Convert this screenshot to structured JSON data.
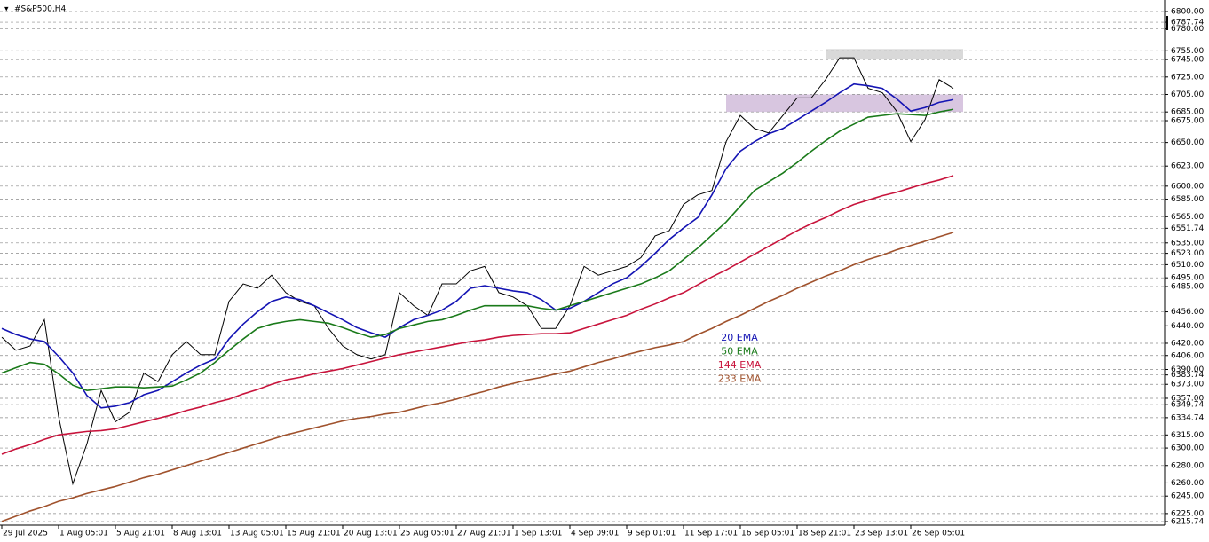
{
  "chart_data": {
    "type": "line",
    "title": "#S&P500,H4",
    "categories": [
      "29 Jul 2025",
      null,
      null,
      null,
      "1 Aug 05:01",
      null,
      null,
      null,
      "5 Aug 21:01",
      null,
      null,
      null,
      "8 Aug 13:01",
      null,
      null,
      null,
      "13 Aug 05:01",
      null,
      null,
      null,
      "15 Aug 21:01",
      null,
      null,
      null,
      "20 Aug 13:01",
      null,
      null,
      null,
      "25 Aug 05:01",
      null,
      null,
      null,
      "27 Aug 21:01",
      null,
      null,
      null,
      "1 Sep 13:01",
      null,
      null,
      null,
      "4 Sep 09:01",
      null,
      null,
      null,
      "9 Sep 01:01",
      null,
      null,
      null,
      "11 Sep 17:01",
      null,
      null,
      null,
      "16 Sep 05:01",
      null,
      null,
      null,
      "18 Sep 21:01",
      null,
      null,
      null,
      "23 Sep 13:01",
      null,
      null,
      null,
      "26 Sep 05:01",
      null,
      null,
      null
    ],
    "series": [
      {
        "color": "#000000",
        "values": [
          6427,
          6412,
          6417,
          6447,
          6336,
          6259,
          6305,
          6366,
          6330,
          6341,
          6386,
          6376,
          6407,
          6422,
          6407,
          6407,
          6468,
          6488,
          6483,
          6498,
          6478,
          6468,
          6463,
          6437,
          6417,
          6407,
          6402,
          6407,
          6478,
          6463,
          6452,
          6488,
          6488,
          6503,
          6508,
          6478,
          6473,
          6463,
          6437,
          6437,
          6463,
          6508,
          6498,
          6503,
          6508,
          6518,
          6543,
          6549,
          6579,
          6590,
          6595,
          6651,
          6681,
          6666,
          6661,
          6681,
          6701,
          6701,
          6722,
          6747,
          6747,
          6712,
          6707,
          6686,
          6651,
          6676,
          6722,
          6712
        ]
      },
      {
        "name": "20 EMA",
        "color": "#1414b4",
        "values": [
          6437,
          6430,
          6425,
          6422,
          6405,
          6386,
          6360,
          6346,
          6348,
          6352,
          6361,
          6366,
          6376,
          6386,
          6395,
          6402,
          6425,
          6442,
          6456,
          6468,
          6473,
          6470,
          6463,
          6455,
          6447,
          6438,
          6432,
          6427,
          6438,
          6447,
          6452,
          6458,
          6468,
          6483,
          6486,
          6483,
          6480,
          6478,
          6470,
          6458,
          6460,
          6468,
          6478,
          6488,
          6495,
          6508,
          6523,
          6539,
          6552,
          6564,
          6590,
          6620,
          6640,
          6651,
          6660,
          6666,
          6676,
          6686,
          6696,
          6707,
          6717,
          6715,
          6712,
          6700,
          6686,
          6690,
          6696,
          6699
        ]
      },
      {
        "name": "50 EMA",
        "color": "#1a7a1a",
        "values": [
          6386,
          6392,
          6398,
          6396,
          6385,
          6372,
          6366,
          6368,
          6370,
          6370,
          6369,
          6370,
          6371,
          6378,
          6386,
          6398,
          6412,
          6425,
          6437,
          6442,
          6445,
          6447,
          6445,
          6443,
          6438,
          6432,
          6427,
          6430,
          6437,
          6441,
          6445,
          6447,
          6452,
          6458,
          6463,
          6463,
          6463,
          6463,
          6460,
          6458,
          6463,
          6468,
          6473,
          6478,
          6483,
          6488,
          6495,
          6503,
          6516,
          6529,
          6544,
          6559,
          6577,
          6595,
          6605,
          6615,
          6627,
          6640,
          6652,
          6663,
          6671,
          6679,
          6681,
          6683,
          6682,
          6681,
          6685,
          6688
        ]
      },
      {
        "name": "144 EMA",
        "color": "#c8143c",
        "values": [
          6293,
          6299,
          6304,
          6310,
          6315,
          6317,
          6319,
          6320,
          6322,
          6326,
          6330,
          6334,
          6338,
          6343,
          6347,
          6352,
          6356,
          6362,
          6367,
          6373,
          6378,
          6381,
          6385,
          6388,
          6391,
          6395,
          6399,
          6403,
          6407,
          6410,
          6413,
          6416,
          6419,
          6422,
          6424,
          6427,
          6429,
          6430,
          6431,
          6431,
          6432,
          6437,
          6442,
          6447,
          6452,
          6459,
          6465,
          6472,
          6478,
          6487,
          6496,
          6504,
          6513,
          6522,
          6531,
          6540,
          6549,
          6557,
          6564,
          6572,
          6579,
          6584,
          6589,
          6593,
          6598,
          6603,
          6607,
          6612
        ]
      },
      {
        "name": "233 EMA",
        "color": "#a0522d",
        "values": [
          6216,
          6222,
          6228,
          6233,
          6239,
          6243,
          6248,
          6252,
          6256,
          6261,
          6266,
          6270,
          6275,
          6280,
          6285,
          6290,
          6295,
          6300,
          6305,
          6310,
          6315,
          6319,
          6323,
          6327,
          6331,
          6334,
          6336,
          6339,
          6341,
          6345,
          6349,
          6352,
          6356,
          6361,
          6365,
          6370,
          6374,
          6378,
          6381,
          6385,
          6388,
          6393,
          6398,
          6402,
          6407,
          6411,
          6415,
          6418,
          6422,
          6430,
          6437,
          6445,
          6452,
          6460,
          6468,
          6475,
          6483,
          6490,
          6497,
          6503,
          6510,
          6516,
          6521,
          6527,
          6532,
          6537,
          6542,
          6547
        ]
      }
    ],
    "zones": [
      {
        "range": [
          6745,
          6757
        ],
        "start": 58,
        "color": "#d9d9d9"
      },
      {
        "range": [
          6685,
          6705
        ],
        "start": 51,
        "color": "#d8c6e0"
      }
    ],
    "ylim": [
      6215.74,
      6800
    ],
    "yticks": [
      {
        "value": 6800,
        "label": "6800.00"
      },
      {
        "value": 6787.74,
        "label": "6787.74"
      },
      {
        "value": 6780,
        "label": "6780.00"
      },
      {
        "value": 6755,
        "label": "6755.00"
      },
      {
        "value": 6745,
        "label": "6745.00"
      },
      {
        "value": 6725,
        "label": "6725.00"
      },
      {
        "value": 6705,
        "label": "6705.00"
      },
      {
        "value": 6685,
        "label": "6685.00"
      },
      {
        "value": 6675,
        "label": "6675.00"
      },
      {
        "value": 6650,
        "label": "6650.00"
      },
      {
        "value": 6623,
        "label": "6623.00"
      },
      {
        "value": 6600,
        "label": "6600.00"
      },
      {
        "value": 6585,
        "label": "6585.00"
      },
      {
        "value": 6565,
        "label": "6565.00"
      },
      {
        "value": 6551.74,
        "label": "6551.74"
      },
      {
        "value": 6535,
        "label": "6535.00"
      },
      {
        "value": 6523,
        "label": "6523.00"
      },
      {
        "value": 6510,
        "label": "6510.00"
      },
      {
        "value": 6495,
        "label": "6495.00"
      },
      {
        "value": 6485,
        "label": "6485.00"
      },
      {
        "value": 6456,
        "label": "6456.00"
      },
      {
        "value": 6440,
        "label": "6440.00"
      },
      {
        "value": 6420,
        "label": "6420.00"
      },
      {
        "value": 6406,
        "label": "6406.00"
      },
      {
        "value": 6390,
        "label": "6390.00"
      },
      {
        "value": 6383.74,
        "label": "6383.74"
      },
      {
        "value": 6373,
        "label": "6373.00"
      },
      {
        "value": 6357,
        "label": "6357.00"
      },
      {
        "value": 6349.74,
        "label": "6349.74"
      },
      {
        "value": 6334.74,
        "label": "6334.74"
      },
      {
        "value": 6315,
        "label": "6315.00"
      },
      {
        "value": 6300,
        "label": "6300.00"
      },
      {
        "value": 6280,
        "label": "6280.00"
      },
      {
        "value": 6260,
        "label": "6260.00"
      },
      {
        "value": 6245,
        "label": "6245.00"
      },
      {
        "value": 6225,
        "label": "6225.00"
      },
      {
        "value": 6215.74,
        "label": "6215.74"
      }
    ],
    "grid": true,
    "legend": "center"
  }
}
